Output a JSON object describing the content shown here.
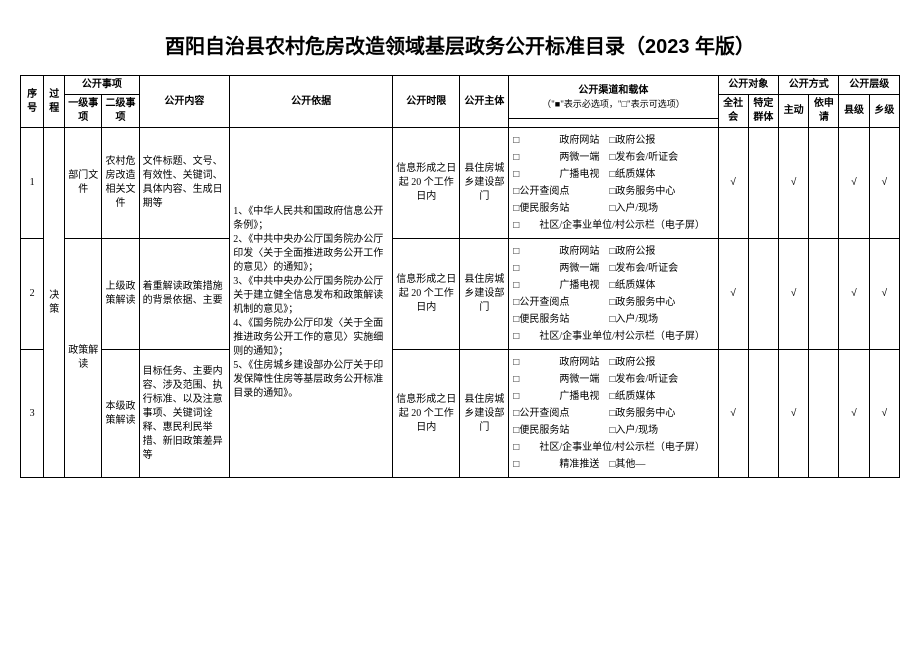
{
  "title": "酉阳自治县农村危房改造领域基层政务公开标准目录（2023 年版）",
  "headers": {
    "seq": "序号",
    "process": "过程",
    "matter": "公开事项",
    "level1": "一级事项",
    "level2": "二级事项",
    "content": "公开内容",
    "basis": "公开依据",
    "time": "公开时限",
    "subject": "公开主体",
    "channel": "公开渠道和载体",
    "channel_note": "（\"■\"表示必选项，\"□\"表示可选项）",
    "target": "公开对象",
    "target_all": "全社会",
    "target_spec": "特定群体",
    "method": "公开方式",
    "method_active": "主动",
    "method_apply": "依申请",
    "hier": "公开层级",
    "hier_county": "县级",
    "hier_town": "乡级"
  },
  "process_label": "决策",
  "basis_text": "1、《中华人民共和国政府信息公开条例》；\n2、《中共中央办公厅国务院办公厅印发〈关于全面推进政务公开工作的意见〉的通知》；\n3、《中共中央办公厅国务院办公厅关于建立健全信息发布和政策解读机制的意见》；\n4、《国务院办公厅印发〈关于全面推进政务公开工作的意见〉实施细则的通知》；\n5、《住房城乡建设部办公厅关于印发保障性住房等基层政务公开标准目录的通知》。",
  "level1_a": "部门文件",
  "level1_b": "政策解读",
  "rows": [
    {
      "seq": "1",
      "level2": "农村危房改造相关文件",
      "content": "文件标题、文号、有效性、关键词、具体内容、生成日期等",
      "time": "信息形成之日起 20 个工作日内",
      "subject": "县住房城乡建设部门",
      "channels": "□　　　　政府网站　□政府公报\n□　　　　两微一端　□发布会/听证会\n□　　　　广播电视　□纸质媒体\n□公开查阅点　　　　□政务服务中心\n□便民服务站　　　　□入户/现场\n□　　社区/企事业单位/村公示栏（电子屏）",
      "marks": [
        "√",
        "",
        "√",
        "",
        "√",
        "√"
      ]
    },
    {
      "seq": "2",
      "level2": "上级政策解读",
      "content": "着重解读政策措施的背景依据、主要",
      "time": "信息形成之日起 20 个工作日内",
      "subject": "县住房城乡建设部门",
      "channels": "□　　　　政府网站　□政府公报\n□　　　　两微一端　□发布会/听证会\n□　　　　广播电视　□纸质媒体\n□公开查阅点　　　　□政务服务中心\n□便民服务站　　　　□入户/现场\n□　　社区/企事业单位/村公示栏（电子屏）",
      "marks": [
        "√",
        "",
        "√",
        "",
        "√",
        "√"
      ]
    },
    {
      "seq": "3",
      "level2": "本级政策解读",
      "content": "目标任务、主要内容、涉及范围、执行标准、以及注意事项、关键词诠释、惠民利民举措、新旧政策差异等",
      "time": "信息形成之日起 20 个工作日内",
      "subject": "县住房城乡建设部门",
      "channels": "□　　　　政府网站　□政府公报\n□　　　　两微一端　□发布会/听证会\n□　　　　广播电视　□纸质媒体\n□公开查阅点　　　　□政务服务中心\n□便民服务站　　　　□入户/现场\n□　　社区/企事业单位/村公示栏（电子屏）\n□　　　　精准推送　□其他―",
      "marks": [
        "√",
        "",
        "√",
        "",
        "√",
        "√"
      ]
    }
  ]
}
